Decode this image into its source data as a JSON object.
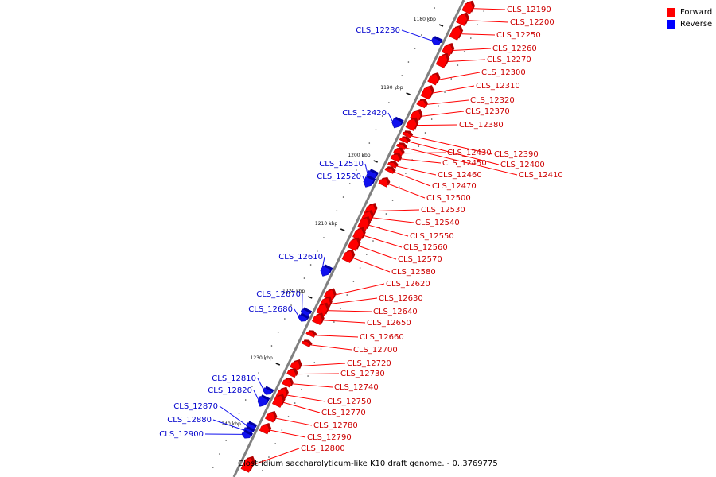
{
  "legend": [
    {
      "label": "Forward",
      "color": "#ff0000"
    },
    {
      "label": "Reverse",
      "color": "#0000ff"
    }
  ],
  "caption": "Clostridium saccharolyticum-like K10 draft genome. - 0..3769775",
  "colors": {
    "forward": "#ff0000",
    "forward_label": "#cc0000",
    "reverse": "#1010ee",
    "reverse_label": "#0000cc",
    "backbone": "#808080",
    "tick": "#111111"
  },
  "scale_ticks": [
    "1180 kbp",
    "1190 kbp",
    "1200 kbp",
    "1210 kbp",
    "1220 kbp",
    "1230 kbp",
    "1240 kbp"
  ],
  "forward_genes": [
    "CLS_12190",
    "CLS_12200",
    "CLS_12250",
    "CLS_12260",
    "CLS_12270",
    "CLS_12300",
    "CLS_12310",
    "CLS_12320",
    "CLS_12370",
    "CLS_12380",
    "CLS_12390",
    "CLS_12400",
    "CLS_12410",
    "CLS_12430",
    "CLS_12450",
    "CLS_12460",
    "CLS_12470",
    "CLS_12500",
    "CLS_12530",
    "CLS_12540",
    "CLS_12550",
    "CLS_12560",
    "CLS_12570",
    "CLS_12580",
    "CLS_12620",
    "CLS_12630",
    "CLS_12640",
    "CLS_12650",
    "CLS_12660",
    "CLS_12700",
    "CLS_12720",
    "CLS_12730",
    "CLS_12740",
    "CLS_12750",
    "CLS_12770",
    "CLS_12780",
    "CLS_12790",
    "CLS_12800"
  ],
  "reverse_genes": [
    "CLS_12230",
    "CLS_12420",
    "CLS_12510",
    "CLS_12520",
    "CLS_12610",
    "CLS_12670",
    "CLS_12680",
    "CLS_12810",
    "CLS_12820",
    "CLS_12870",
    "CLS_12880",
    "CLS_12900"
  ]
}
